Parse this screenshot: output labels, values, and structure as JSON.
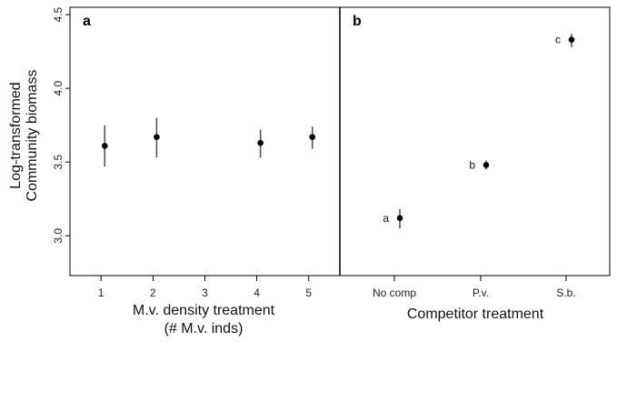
{
  "chart_data": [
    {
      "type": "scatter",
      "panel_label": "a",
      "xlabel": [
        "M.v. density treatment",
        "(# M.v. inds)"
      ],
      "ylabel": [
        "Log-transformed",
        "Community biomass"
      ],
      "x_ticks": [
        "1",
        "2",
        "3",
        "4",
        "5"
      ],
      "y_ticks": [
        "3.0",
        "3.5",
        "4.0",
        "4.5"
      ],
      "ylim": [
        2.73,
        4.55
      ],
      "xlim": [
        0.4,
        5.6
      ],
      "grid": false,
      "points": [
        {
          "x": 1,
          "y": 3.61,
          "err_low": 3.47,
          "err_high": 3.75
        },
        {
          "x": 2,
          "y": 3.67,
          "err_low": 3.53,
          "err_high": 3.8
        },
        {
          "x": 4,
          "y": 3.63,
          "err_low": 3.53,
          "err_high": 3.72
        },
        {
          "x": 5,
          "y": 3.67,
          "err_low": 3.59,
          "err_high": 3.74
        }
      ]
    },
    {
      "type": "scatter",
      "panel_label": "b",
      "xlabel": [
        "Competitor treatment"
      ],
      "categories": [
        "No comp",
        "P.v.",
        "S.b."
      ],
      "ylim": [
        2.73,
        4.55
      ],
      "grid": false,
      "points": [
        {
          "category": "No comp",
          "y": 3.12,
          "err_low": 3.05,
          "err_high": 3.18,
          "group": "a"
        },
        {
          "category": "P.v.",
          "y": 3.48,
          "err_low": 3.45,
          "err_high": 3.51,
          "group": "b"
        },
        {
          "category": "S.b.",
          "y": 4.33,
          "err_low": 4.28,
          "err_high": 4.37,
          "group": "c"
        }
      ]
    }
  ]
}
